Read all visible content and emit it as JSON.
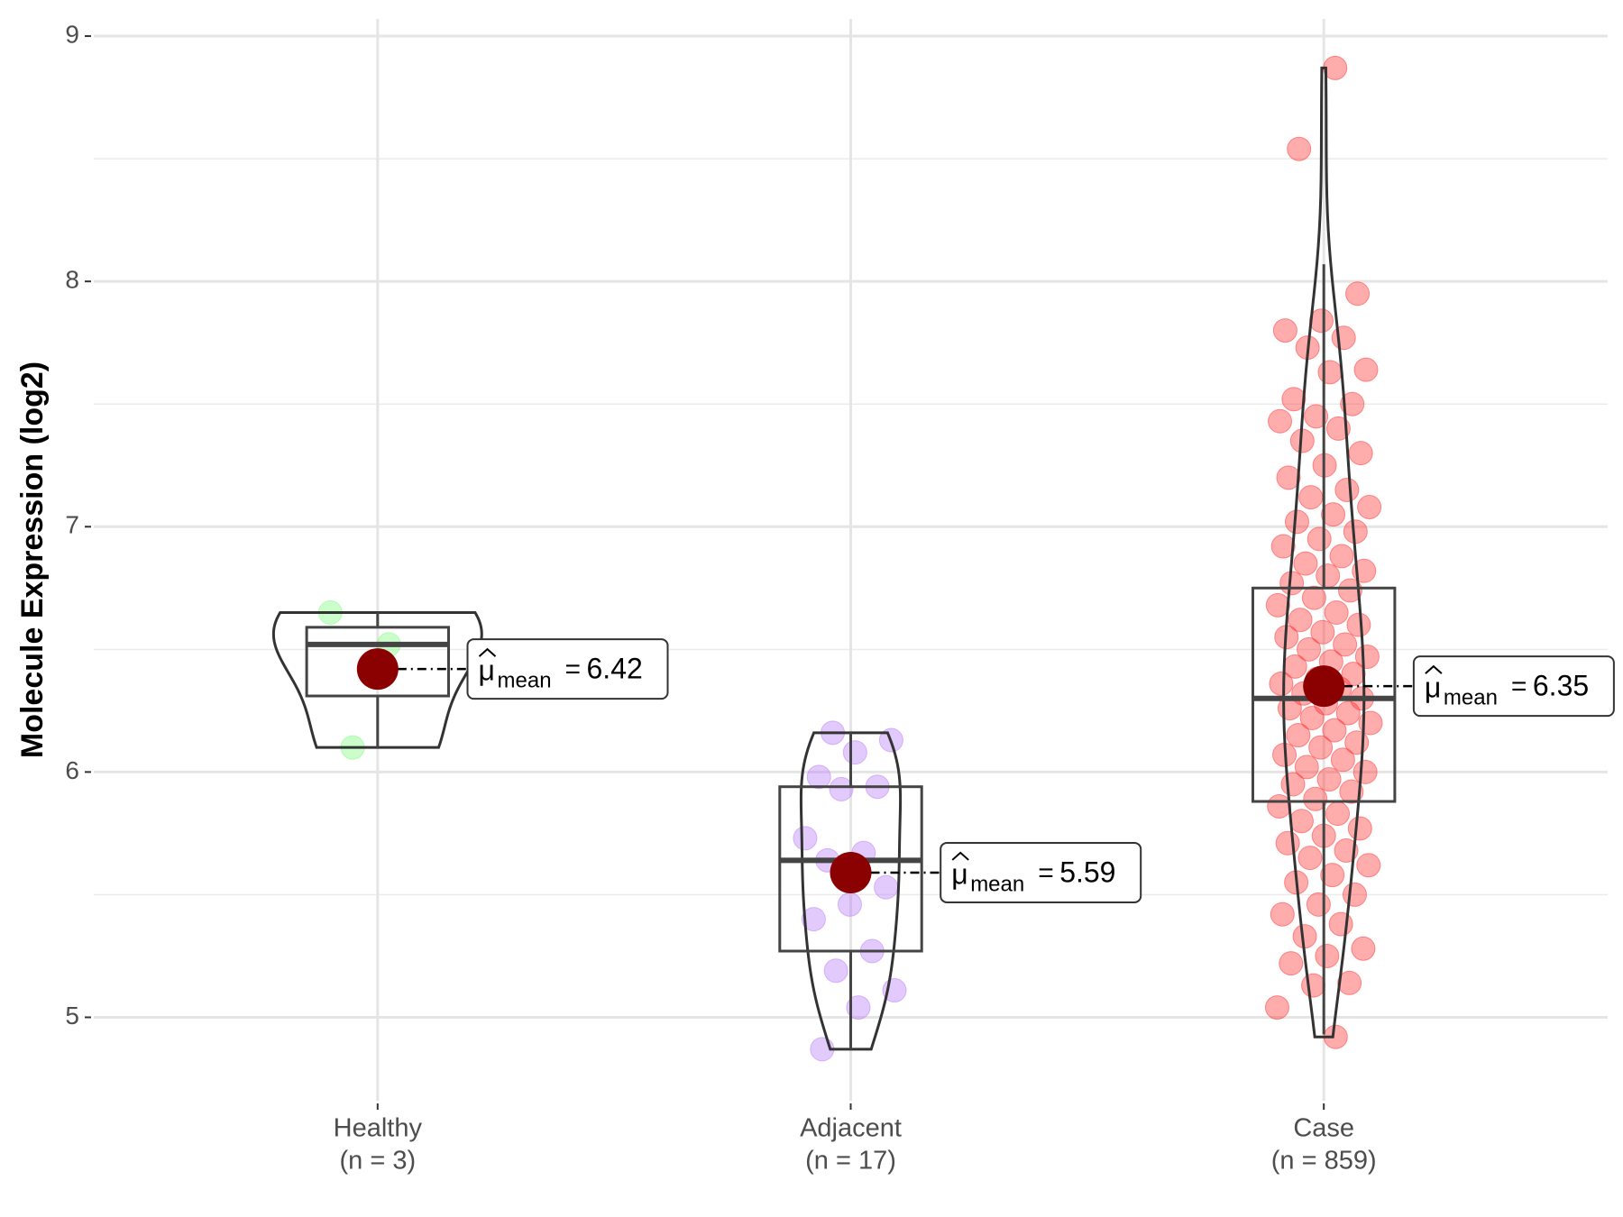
{
  "chart_data": {
    "type": "violin",
    "y_label": "Molecule Expression (log2)",
    "ylim": [
      4.66,
      9.07
    ],
    "yticks": [
      5,
      6,
      7,
      8,
      9
    ],
    "grid": true,
    "mean_label": {
      "symbol": "μ",
      "subscript": "mean",
      "equals": "="
    },
    "groups": [
      {
        "name": "Healthy",
        "n_label": "(n = 3)",
        "color": "#7CFC7C",
        "values": [
          6.65,
          6.52,
          6.1
        ],
        "whisker_low": 6.1,
        "q1": 6.31,
        "median": 6.52,
        "q3": 6.59,
        "whisker_high": 6.65,
        "mean": 6.42
      },
      {
        "name": "Adjacent",
        "n_label": "(n = 17)",
        "color": "#B77CF7",
        "values": [
          6.16,
          6.13,
          6.08,
          5.98,
          5.94,
          5.93,
          5.73,
          5.67,
          5.64,
          5.53,
          5.46,
          5.4,
          5.27,
          5.19,
          5.11,
          5.04,
          4.87
        ],
        "whisker_low": 4.87,
        "q1": 5.27,
        "median": 5.64,
        "q3": 5.94,
        "whisker_high": 6.16,
        "mean": 5.59
      },
      {
        "name": "Case",
        "n_label": "(n = 859)",
        "color": "#FF3030",
        "values": [
          8.87,
          8.54,
          7.95,
          7.84,
          7.8,
          7.77,
          7.73,
          7.64,
          7.63,
          7.52,
          7.5,
          7.45,
          7.43,
          7.4,
          7.35,
          7.3,
          7.25,
          7.2,
          7.15,
          7.12,
          7.08,
          7.05,
          7.02,
          6.98,
          6.95,
          6.92,
          6.88,
          6.85,
          6.82,
          6.8,
          6.77,
          6.74,
          6.71,
          6.68,
          6.65,
          6.62,
          6.6,
          6.57,
          6.55,
          6.52,
          6.5,
          6.47,
          6.45,
          6.43,
          6.4,
          6.38,
          6.36,
          6.34,
          6.32,
          6.3,
          6.28,
          6.26,
          6.24,
          6.22,
          6.2,
          6.17,
          6.15,
          6.12,
          6.1,
          6.07,
          6.05,
          6.02,
          6.0,
          5.97,
          5.95,
          5.92,
          5.89,
          5.86,
          5.83,
          5.8,
          5.77,
          5.74,
          5.71,
          5.68,
          5.65,
          5.62,
          5.58,
          5.55,
          5.5,
          5.46,
          5.42,
          5.38,
          5.33,
          5.28,
          5.25,
          5.22,
          5.14,
          5.13,
          5.04,
          4.92
        ],
        "whisker_low": 4.93,
        "q1": 5.88,
        "median": 6.3,
        "q3": 6.75,
        "whisker_high": 8.07,
        "mean": 6.35
      }
    ]
  }
}
